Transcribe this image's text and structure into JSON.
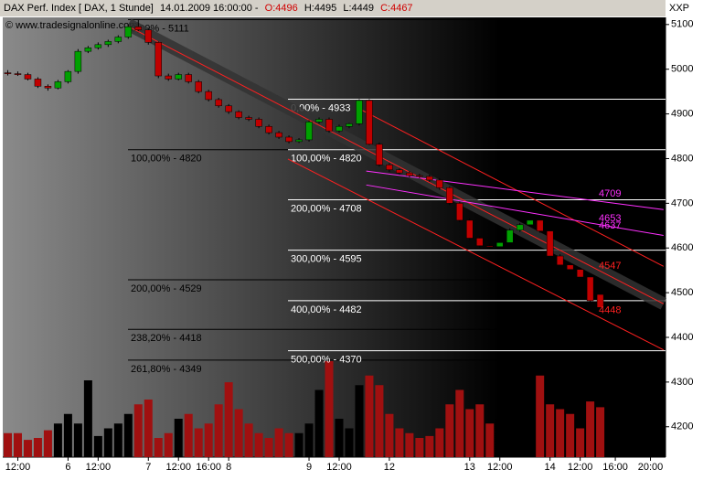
{
  "chart_data": {
    "type": "candlestick",
    "header": {
      "title": "DAX Perf. Index [ DAX, 1 Stunde]",
      "timestamp": "14.01.2009 16:00:00 -",
      "open": "O:4496",
      "high": "H:4495",
      "low": "L:4449",
      "close": "C:4467"
    },
    "copyright": "© www.tradesignalonline.com",
    "exchange": "XXP",
    "up_color": "#00a000",
    "down_color": "#c00000",
    "volume_up_color": "#000000",
    "volume_down_color": "#a01010",
    "categories": [
      null,
      null,
      null,
      null,
      null,
      null,
      null,
      null,
      null,
      null,
      null,
      null,
      null,
      null,
      null,
      null,
      null,
      null,
      null,
      null,
      null,
      null,
      null,
      null,
      null,
      null,
      null,
      null,
      null,
      null,
      null,
      null,
      null,
      null,
      null,
      null,
      null,
      null,
      null,
      null,
      null,
      null,
      null,
      null,
      null,
      null,
      null,
      null,
      null,
      null,
      null,
      null,
      null,
      null,
      null,
      null,
      null,
      null,
      null,
      null
    ],
    "open": [
      4992,
      4990,
      4988,
      4978,
      4962,
      4958,
      4972,
      4995,
      5040,
      5048,
      5055,
      5062,
      5072,
      5095,
      5088,
      5060,
      4985,
      4978,
      4988,
      4972,
      4950,
      4932,
      4918,
      4905,
      4892,
      4888,
      4872,
      4858,
      4848,
      4838,
      4842,
      4882,
      4888,
      4862,
      4872,
      4878,
      4930,
      4832,
      4786,
      4775,
      4768,
      4762,
      4760,
      4752,
      4735,
      4700,
      4662,
      4622,
      4605,
      4603,
      4612,
      4640,
      4652,
      4662,
      4638,
      4582,
      4562,
      4552,
      4535,
      4496
    ],
    "high": [
      4998,
      4995,
      4992,
      4982,
      4966,
      4976,
      4998,
      5045,
      5052,
      5060,
      5066,
      5076,
      5100,
      5111,
      5092,
      5062,
      4990,
      4992,
      4992,
      4976,
      4954,
      4936,
      4922,
      4908,
      4896,
      4892,
      4876,
      4862,
      4852,
      4846,
      4886,
      4892,
      4892,
      4876,
      4880,
      4933,
      4933,
      4836,
      4790,
      4778,
      4772,
      4766,
      4764,
      4756,
      4738,
      4704,
      4666,
      4626,
      4610,
      4616,
      4644,
      4656,
      4666,
      4668,
      4642,
      4586,
      4566,
      4556,
      4540,
      4495
    ],
    "low": [
      4986,
      4985,
      4975,
      4958,
      4952,
      4955,
      4968,
      4990,
      5036,
      5044,
      5050,
      5058,
      5068,
      5085,
      5055,
      4980,
      4974,
      4975,
      4968,
      4946,
      4928,
      4914,
      4900,
      4888,
      4884,
      4868,
      4854,
      4844,
      4834,
      4835,
      4838,
      4878,
      4858,
      4858,
      4868,
      4874,
      4830,
      4782,
      4770,
      4764,
      4758,
      4756,
      4748,
      4730,
      4696,
      4658,
      4618,
      4600,
      4598,
      4600,
      4608,
      4636,
      4648,
      4634,
      4578,
      4558,
      4546,
      4530,
      4478,
      4449
    ],
    "close": [
      4990,
      4988,
      4978,
      4962,
      4958,
      4972,
      4995,
      5040,
      5048,
      5055,
      5062,
      5072,
      5095,
      5088,
      5060,
      4985,
      4978,
      4988,
      4972,
      4950,
      4932,
      4918,
      4905,
      4892,
      4888,
      4872,
      4858,
      4848,
      4838,
      4842,
      4882,
      4888,
      4862,
      4872,
      4878,
      4930,
      4832,
      4786,
      4775,
      4768,
      4762,
      4760,
      4752,
      4735,
      4700,
      4662,
      4622,
      4605,
      4603,
      4612,
      4640,
      4652,
      4662,
      4638,
      4582,
      4562,
      4552,
      4535,
      4482,
      4467
    ],
    "volume": [
      25,
      25,
      18,
      20,
      28,
      35,
      45,
      35,
      80,
      22,
      30,
      35,
      45,
      55,
      60,
      20,
      25,
      40,
      45,
      30,
      35,
      55,
      78,
      50,
      35,
      25,
      20,
      30,
      25,
      25,
      35,
      70,
      100,
      40,
      30,
      75,
      85,
      75,
      45,
      30,
      25,
      20,
      22,
      30,
      55,
      70,
      50,
      55,
      35,
      40,
      55,
      60,
      45,
      85,
      55,
      50,
      45,
      30,
      58,
      52
    ],
    "vlim": [
      0,
      100
    ],
    "xlim": [
      -0.5,
      65.5
    ],
    "xticks": [
      {
        "value": 1,
        "label": "12:00"
      },
      {
        "value": 6,
        "label": "6"
      },
      {
        "value": 9,
        "label": "12:00"
      },
      {
        "value": 14,
        "label": "7"
      },
      {
        "value": 17,
        "label": "12:00"
      },
      {
        "value": 20,
        "label": "16:00"
      },
      {
        "value": 22,
        "label": "8"
      },
      {
        "value": 30,
        "label": "9"
      },
      {
        "value": 33,
        "label": "12:00"
      },
      {
        "value": 38,
        "label": "12"
      },
      {
        "value": 46,
        "label": "13"
      },
      {
        "value": 49,
        "label": "12:00"
      },
      {
        "value": 54,
        "label": "14"
      },
      {
        "value": 57,
        "label": "12:00"
      },
      {
        "value": 60.5,
        "label": "16:00"
      },
      {
        "value": 64,
        "label": "20:00"
      }
    ],
    "ylim": [
      4132,
      5116
    ],
    "yticks": [
      4200,
      4300,
      4400,
      4500,
      4600,
      4700,
      4800,
      4900,
      5000,
      5100
    ],
    "fib_levels_a": [
      {
        "label": "0,00% - 5111",
        "value": 5111
      },
      {
        "label": "100,00% - 4820",
        "value": 4820
      },
      {
        "label": "200,00% - 4529",
        "value": 4529
      },
      {
        "label": "238,20% - 4418",
        "value": 4418
      },
      {
        "label": "261,80% - 4349",
        "value": 4349
      }
    ],
    "fib_levels_b": [
      {
        "label": "0,00% - 4933",
        "value": 4933
      },
      {
        "label": "100,00% - 4820",
        "value": 4820
      },
      {
        "label": "200,00% - 4708",
        "value": 4708
      },
      {
        "label": "300,00% - 4595",
        "value": 4595
      },
      {
        "label": "400,00% - 4482",
        "value": 4482
      },
      {
        "label": "500,00% - 4370",
        "value": 4370
      }
    ],
    "channel_band": {
      "x": [
        12.0,
        65.3
      ],
      "values": [
        5100,
        4475
      ],
      "color": "#333333"
    },
    "trendlines": [
      {
        "color": "#ff2020",
        "x": [
          12.0,
          65.3
        ],
        "values": [
          5096,
          4475
        ]
      },
      {
        "color": "#ff2020",
        "x": [
          34.7,
          65.3
        ],
        "values": [
          4915,
          4559
        ]
      },
      {
        "color": "#ff2020",
        "x": [
          27.9,
          65.3
        ],
        "values": [
          4799,
          4372
        ]
      },
      {
        "color": "#ff30ff",
        "x": [
          35.7,
          65.3
        ],
        "values": [
          4772,
          4686
        ]
      },
      {
        "color": "#ff30ff",
        "x": [
          35.7,
          65.3
        ],
        "values": [
          4741,
          4628
        ]
      }
    ],
    "price_labels": [
      {
        "value": 4709,
        "color": "#ff30ff"
      },
      {
        "value": 4653,
        "color": "#ff30ff"
      },
      {
        "value": 4637,
        "color": "#ff30ff"
      },
      {
        "value": 4547,
        "color": "#ff2020"
      },
      {
        "value": 4448,
        "color": "#ff2020"
      }
    ]
  }
}
